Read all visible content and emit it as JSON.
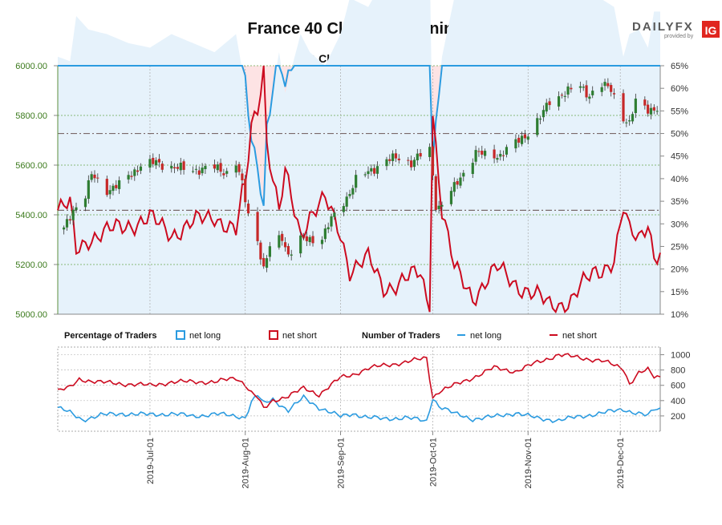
{
  "title": "France 40 Client Positioning",
  "subtitle": "IG Client Sentiment",
  "brand": {
    "name": "DAILYFX",
    "tagline": "provided by",
    "partner": "IG"
  },
  "colors": {
    "upper_bg": "#fde3e4",
    "lower_bg": "#e6f2fb",
    "net_long": "#2b9be0",
    "net_short": "#cc0a1f",
    "candle_up": "#2e7d32",
    "candle_down": "#c62828",
    "price_axis": "#3b7a1c",
    "grid": "#9aa29a"
  },
  "legend": {
    "pct_title": "Percentage of Traders",
    "num_title": "Number of Traders",
    "net_long": "net long",
    "net_short": "net short"
  },
  "chart_data": [
    {
      "type": "candlestick",
      "name": "price",
      "ylim": [
        5000,
        6000
      ],
      "yticks": [
        "5000.00",
        "5200.00",
        "5400.00",
        "5600.00",
        "5800.00",
        "6000.00"
      ],
      "right_ylim": [
        10,
        65
      ],
      "right_yticks": [
        "10%",
        "15%",
        "20%",
        "25%",
        "30%",
        "35%",
        "40%",
        "45%",
        "50%",
        "55%",
        "60%",
        "65%"
      ],
      "reference_lines_percent": [
        50,
        33
      ],
      "x_start": "2019-06-01",
      "x_end": "2019-12-14",
      "xticks": [
        "2019-Jul-01",
        "2019-Aug-01",
        "2019-Sep-01",
        "2019-Oct-01",
        "2019-Nov-01",
        "2019-Dec-01"
      ],
      "price_anchors": [
        [
          "2019-06-03",
          5340
        ],
        [
          "2019-06-06",
          5420
        ],
        [
          "2019-06-10",
          5480
        ],
        [
          "2019-06-12",
          5560
        ],
        [
          "2019-06-17",
          5500
        ],
        [
          "2019-06-21",
          5520
        ],
        [
          "2019-06-28",
          5600
        ],
        [
          "2019-07-03",
          5610
        ],
        [
          "2019-07-09",
          5590
        ],
        [
          "2019-07-15",
          5580
        ],
        [
          "2019-07-22",
          5590
        ],
        [
          "2019-07-26",
          5570
        ],
        [
          "2019-07-29",
          5610
        ],
        [
          "2019-07-31",
          5520
        ],
        [
          "2019-08-02",
          5400
        ],
        [
          "2019-08-05",
          5300
        ],
        [
          "2019-08-07",
          5180
        ],
        [
          "2019-08-09",
          5270
        ],
        [
          "2019-08-13",
          5310
        ],
        [
          "2019-08-15",
          5240
        ],
        [
          "2019-08-19",
          5300
        ],
        [
          "2019-08-22",
          5300
        ],
        [
          "2019-08-26",
          5310
        ],
        [
          "2019-08-29",
          5380
        ],
        [
          "2019-09-03",
          5470
        ],
        [
          "2019-09-06",
          5540
        ],
        [
          "2019-09-11",
          5580
        ],
        [
          "2019-09-16",
          5620
        ],
        [
          "2019-09-20",
          5630
        ],
        [
          "2019-09-24",
          5610
        ],
        [
          "2019-09-27",
          5640
        ],
        [
          "2019-09-30",
          5660
        ],
        [
          "2019-10-01",
          5560
        ],
        [
          "2019-10-02",
          5440
        ],
        [
          "2019-10-03",
          5430
        ],
        [
          "2019-10-08",
          5510
        ],
        [
          "2019-10-11",
          5570
        ],
        [
          "2019-10-15",
          5650
        ],
        [
          "2019-10-18",
          5640
        ],
        [
          "2019-10-23",
          5640
        ],
        [
          "2019-10-29",
          5700
        ],
        [
          "2019-11-01",
          5730
        ],
        [
          "2019-11-05",
          5790
        ],
        [
          "2019-11-08",
          5860
        ],
        [
          "2019-11-13",
          5890
        ],
        [
          "2019-11-18",
          5920
        ],
        [
          "2019-11-21",
          5880
        ],
        [
          "2019-11-25",
          5920
        ],
        [
          "2019-11-28",
          5910
        ],
        [
          "2019-12-02",
          5790
        ],
        [
          "2019-12-04",
          5760
        ],
        [
          "2019-12-06",
          5860
        ],
        [
          "2019-12-10",
          5830
        ],
        [
          "2019-12-12",
          5820
        ]
      ]
    },
    {
      "type": "line",
      "name": "net long percent",
      "unit": "%",
      "anchors": [
        [
          "2019-06-01",
          67
        ],
        [
          "2019-06-05",
          66
        ],
        [
          "2019-06-07",
          76
        ],
        [
          "2019-06-11",
          73
        ],
        [
          "2019-06-17",
          72
        ],
        [
          "2019-06-24",
          70
        ],
        [
          "2019-07-01",
          69
        ],
        [
          "2019-07-08",
          72
        ],
        [
          "2019-07-15",
          70
        ],
        [
          "2019-07-22",
          68
        ],
        [
          "2019-07-29",
          72
        ],
        [
          "2019-07-31",
          64
        ],
        [
          "2019-08-01",
          62
        ],
        [
          "2019-08-03",
          48
        ],
        [
          "2019-08-05",
          44
        ],
        [
          "2019-08-07",
          34
        ],
        [
          "2019-08-08",
          52
        ],
        [
          "2019-08-12",
          68
        ],
        [
          "2019-08-14",
          59
        ],
        [
          "2019-08-19",
          72
        ],
        [
          "2019-08-22",
          68
        ],
        [
          "2019-08-27",
          65
        ],
        [
          "2019-09-01",
          72
        ],
        [
          "2019-09-04",
          80
        ],
        [
          "2019-09-10",
          78
        ],
        [
          "2019-09-15",
          84
        ],
        [
          "2019-09-20",
          83
        ],
        [
          "2019-09-27",
          81
        ],
        [
          "2019-09-30",
          89
        ],
        [
          "2019-10-01",
          45
        ],
        [
          "2019-10-04",
          67
        ],
        [
          "2019-10-08",
          80
        ],
        [
          "2019-10-14",
          86
        ],
        [
          "2019-10-22",
          80
        ],
        [
          "2019-11-01",
          85
        ],
        [
          "2019-11-08",
          88
        ],
        [
          "2019-11-15",
          87
        ],
        [
          "2019-11-22",
          81
        ],
        [
          "2019-11-29",
          78
        ],
        [
          "2019-12-02",
          67
        ],
        [
          "2019-12-04",
          72
        ],
        [
          "2019-12-07",
          73
        ],
        [
          "2019-12-10",
          69
        ],
        [
          "2019-12-12",
          77
        ]
      ]
    },
    {
      "type": "line",
      "name": "net short percent",
      "unit": "%",
      "anchors": [
        [
          "2019-06-01",
          33
        ],
        [
          "2019-06-05",
          34
        ],
        [
          "2019-06-07",
          24
        ],
        [
          "2019-06-11",
          27
        ],
        [
          "2019-06-17",
          28
        ],
        [
          "2019-06-24",
          30
        ],
        [
          "2019-07-01",
          31
        ],
        [
          "2019-07-08",
          28
        ],
        [
          "2019-07-15",
          30
        ],
        [
          "2019-07-22",
          32
        ],
        [
          "2019-07-29",
          28
        ],
        [
          "2019-07-31",
          36
        ],
        [
          "2019-08-01",
          38
        ],
        [
          "2019-08-03",
          52
        ],
        [
          "2019-08-05",
          56
        ],
        [
          "2019-08-07",
          66
        ],
        [
          "2019-08-08",
          48
        ],
        [
          "2019-08-12",
          32
        ],
        [
          "2019-08-14",
          41
        ],
        [
          "2019-08-19",
          28
        ],
        [
          "2019-08-22",
          32
        ],
        [
          "2019-08-27",
          35
        ],
        [
          "2019-09-01",
          28
        ],
        [
          "2019-09-04",
          20
        ],
        [
          "2019-09-10",
          22
        ],
        [
          "2019-09-15",
          16
        ],
        [
          "2019-09-20",
          17
        ],
        [
          "2019-09-27",
          19
        ],
        [
          "2019-09-30",
          11
        ],
        [
          "2019-10-01",
          55
        ],
        [
          "2019-10-04",
          33
        ],
        [
          "2019-10-08",
          20
        ],
        [
          "2019-10-14",
          14
        ],
        [
          "2019-10-22",
          20
        ],
        [
          "2019-11-01",
          15
        ],
        [
          "2019-11-08",
          12
        ],
        [
          "2019-11-15",
          13
        ],
        [
          "2019-11-22",
          19
        ],
        [
          "2019-11-29",
          22
        ],
        [
          "2019-12-02",
          33
        ],
        [
          "2019-12-04",
          28
        ],
        [
          "2019-12-07",
          27
        ],
        [
          "2019-12-10",
          31
        ],
        [
          "2019-12-12",
          23
        ]
      ]
    },
    {
      "type": "line",
      "name": "number of traders",
      "ylim": [
        0,
        1100
      ],
      "yticks": [
        "200",
        "400",
        "600",
        "800",
        "1000"
      ],
      "series": [
        {
          "name": "net long",
          "anchors": [
            [
              "2019-06-01",
              310
            ],
            [
              "2019-06-05",
              240
            ],
            [
              "2019-06-09",
              150
            ],
            [
              "2019-06-15",
              210
            ],
            [
              "2019-06-22",
              230
            ],
            [
              "2019-07-01",
              215
            ],
            [
              "2019-07-08",
              230
            ],
            [
              "2019-07-15",
              195
            ],
            [
              "2019-07-22",
              225
            ],
            [
              "2019-07-29",
              200
            ],
            [
              "2019-08-01",
              180
            ],
            [
              "2019-08-03",
              380
            ],
            [
              "2019-08-05",
              470
            ],
            [
              "2019-08-07",
              360
            ],
            [
              "2019-08-10",
              420
            ],
            [
              "2019-08-15",
              270
            ],
            [
              "2019-08-20",
              440
            ],
            [
              "2019-08-25",
              310
            ],
            [
              "2019-09-01",
              190
            ],
            [
              "2019-09-05",
              230
            ],
            [
              "2019-09-10",
              180
            ],
            [
              "2019-09-15",
              160
            ],
            [
              "2019-09-22",
              180
            ],
            [
              "2019-09-29",
              130
            ],
            [
              "2019-10-01",
              440
            ],
            [
              "2019-10-03",
              330
            ],
            [
              "2019-10-08",
              230
            ],
            [
              "2019-10-14",
              160
            ],
            [
              "2019-10-21",
              190
            ],
            [
              "2019-10-28",
              240
            ],
            [
              "2019-11-04",
              170
            ],
            [
              "2019-11-11",
              140
            ],
            [
              "2019-11-18",
              195
            ],
            [
              "2019-11-25",
              235
            ],
            [
              "2019-12-02",
              290
            ],
            [
              "2019-12-04",
              260
            ],
            [
              "2019-12-07",
              230
            ],
            [
              "2019-12-10",
              200
            ],
            [
              "2019-12-12",
              290
            ]
          ]
        },
        {
          "name": "net short",
          "anchors": [
            [
              "2019-06-01",
              530
            ],
            [
              "2019-06-05",
              570
            ],
            [
              "2019-06-08",
              680
            ],
            [
              "2019-06-15",
              640
            ],
            [
              "2019-06-22",
              620
            ],
            [
              "2019-07-01",
              600
            ],
            [
              "2019-07-08",
              640
            ],
            [
              "2019-07-15",
              650
            ],
            [
              "2019-07-22",
              640
            ],
            [
              "2019-07-29",
              700
            ],
            [
              "2019-08-01",
              610
            ],
            [
              "2019-08-03",
              500
            ],
            [
              "2019-08-05",
              440
            ],
            [
              "2019-08-07",
              290
            ],
            [
              "2019-08-10",
              400
            ],
            [
              "2019-08-15",
              460
            ],
            [
              "2019-08-20",
              560
            ],
            [
              "2019-08-25",
              480
            ],
            [
              "2019-09-01",
              700
            ],
            [
              "2019-09-05",
              740
            ],
            [
              "2019-09-10",
              820
            ],
            [
              "2019-09-15",
              860
            ],
            [
              "2019-09-22",
              900
            ],
            [
              "2019-09-29",
              960
            ],
            [
              "2019-10-01",
              440
            ],
            [
              "2019-10-03",
              520
            ],
            [
              "2019-10-08",
              600
            ],
            [
              "2019-10-14",
              700
            ],
            [
              "2019-10-21",
              830
            ],
            [
              "2019-10-28",
              780
            ],
            [
              "2019-11-04",
              900
            ],
            [
              "2019-11-11",
              1000
            ],
            [
              "2019-11-18",
              960
            ],
            [
              "2019-11-25",
              920
            ],
            [
              "2019-12-02",
              820
            ],
            [
              "2019-12-04",
              620
            ],
            [
              "2019-12-07",
              760
            ],
            [
              "2019-12-10",
              800
            ],
            [
              "2019-12-12",
              710
            ]
          ]
        }
      ]
    }
  ]
}
